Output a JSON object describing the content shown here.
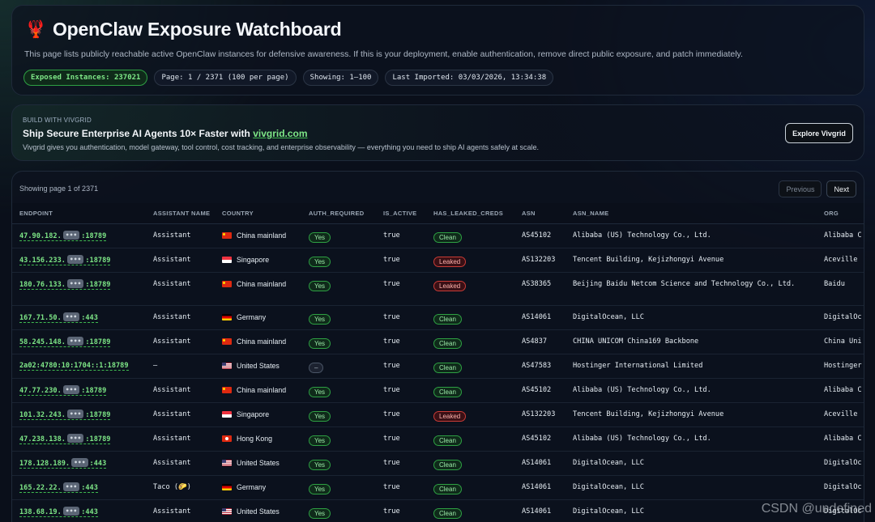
{
  "header": {
    "title": "OpenClaw Exposure Watchboard",
    "description": "This page lists publicly reachable active OpenClaw instances for defensive awareness. If this is your deployment, enable authentication, remove direct public exposure, and patch immediately.",
    "pills": {
      "exposed": "Exposed Instances: 237021",
      "page": "Page: 1 / 2371 (100 per page)",
      "showing": "Showing: 1–100",
      "imported": "Last Imported: 03/03/2026, 13:34:38"
    }
  },
  "promo": {
    "kicker": "BUILD WITH VIVGRID",
    "headline_prefix": "Ship Secure Enterprise AI Agents 10× Faster with ",
    "headline_link": "vivgrid.com",
    "subtext": "Vivgrid gives you authentication, model gateway, tool control, cost tracking, and enterprise observability — everything you need to ship AI agents safely at scale.",
    "button": "Explore Vivgrid"
  },
  "table": {
    "showing_text": "Showing page 1 of 2371",
    "prev_label": "Previous",
    "next_label": "Next",
    "columns": [
      "ENDPOINT",
      "ASSISTANT NAME",
      "COUNTRY",
      "AUTH_REQUIRED",
      "IS_ACTIVE",
      "HAS_LEAKED_CREDS",
      "ASN",
      "ASN_NAME",
      "ORG"
    ],
    "mask_text": "•••",
    "rows": [
      {
        "ep_prefix": "47.90.182.",
        "ep_suffix": ":18789",
        "masked": true,
        "assistant": "Assistant",
        "flag": "cn",
        "country": "China mainland",
        "auth": "Yes",
        "active": "true",
        "leaked": "Clean",
        "asn": "AS45102",
        "asn_name": "Alibaba (US) Technology Co., Ltd.",
        "org": "Alibaba C"
      },
      {
        "ep_prefix": "43.156.233.",
        "ep_suffix": ":18789",
        "masked": true,
        "assistant": "Assistant",
        "flag": "sg",
        "country": "Singapore",
        "auth": "Yes",
        "active": "true",
        "leaked": "Leaked",
        "asn": "AS132203",
        "asn_name": "Tencent Building, Kejizhongyi Avenue",
        "org": "Aceville"
      },
      {
        "ep_prefix": "180.76.133.",
        "ep_suffix": ":18789",
        "masked": true,
        "assistant": "Assistant",
        "flag": "cn",
        "country": "China mainland",
        "auth": "Yes",
        "active": "true",
        "leaked": "Leaked",
        "asn": "AS38365",
        "asn_name": "Beijing Baidu Netcom Science and Technology Co., Ltd.",
        "org": "Baidu",
        "tall": true
      },
      {
        "ep_prefix": "167.71.50.",
        "ep_suffix": ":443",
        "masked": true,
        "assistant": "Assistant",
        "flag": "de",
        "country": "Germany",
        "auth": "Yes",
        "active": "true",
        "leaked": "Clean",
        "asn": "AS14061",
        "asn_name": "DigitalOcean, LLC",
        "org": "DigitalOc"
      },
      {
        "ep_prefix": "58.245.148.",
        "ep_suffix": ":18789",
        "masked": true,
        "assistant": "Assistant",
        "flag": "cn",
        "country": "China mainland",
        "auth": "Yes",
        "active": "true",
        "leaked": "Clean",
        "asn": "AS4837",
        "asn_name": "CHINA UNICOM China169 Backbone",
        "org": "China Uni"
      },
      {
        "ep_prefix": "2a02:4780:10:1704::1:18789",
        "ep_suffix": "",
        "masked": false,
        "assistant": "–",
        "flag": "us",
        "country": "United States",
        "auth": "–",
        "active": "true",
        "leaked": "Clean",
        "asn": "AS47583",
        "asn_name": "Hostinger International Limited",
        "org": "Hostinger"
      },
      {
        "ep_prefix": "47.77.230.",
        "ep_suffix": ":18789",
        "masked": true,
        "assistant": "Assistant",
        "flag": "cn",
        "country": "China mainland",
        "auth": "Yes",
        "active": "true",
        "leaked": "Clean",
        "asn": "AS45102",
        "asn_name": "Alibaba (US) Technology Co., Ltd.",
        "org": "Alibaba C"
      },
      {
        "ep_prefix": "101.32.243.",
        "ep_suffix": ":18789",
        "masked": true,
        "assistant": "Assistant",
        "flag": "sg",
        "country": "Singapore",
        "auth": "Yes",
        "active": "true",
        "leaked": "Leaked",
        "asn": "AS132203",
        "asn_name": "Tencent Building, Kejizhongyi Avenue",
        "org": "Aceville"
      },
      {
        "ep_prefix": "47.238.138.",
        "ep_suffix": ":18789",
        "masked": true,
        "assistant": "Assistant",
        "flag": "hk",
        "country": "Hong Kong",
        "auth": "Yes",
        "active": "true",
        "leaked": "Clean",
        "asn": "AS45102",
        "asn_name": "Alibaba (US) Technology Co., Ltd.",
        "org": "Alibaba C"
      },
      {
        "ep_prefix": "178.128.189.",
        "ep_suffix": ":443",
        "masked": true,
        "assistant": "Assistant",
        "flag": "us",
        "country": "United States",
        "auth": "Yes",
        "active": "true",
        "leaked": "Clean",
        "asn": "AS14061",
        "asn_name": "DigitalOcean, LLC",
        "org": "DigitalOc"
      },
      {
        "ep_prefix": "165.22.22.",
        "ep_suffix": ":443",
        "masked": true,
        "assistant": "Taco (🌮)",
        "flag": "de",
        "country": "Germany",
        "auth": "Yes",
        "active": "true",
        "leaked": "Clean",
        "asn": "AS14061",
        "asn_name": "DigitalOcean, LLC",
        "org": "DigitalOc"
      },
      {
        "ep_prefix": "138.68.19.",
        "ep_suffix": ":443",
        "masked": true,
        "assistant": "Assistant",
        "flag": "us",
        "country": "United States",
        "auth": "Yes",
        "active": "true",
        "leaked": "Clean",
        "asn": "AS14061",
        "asn_name": "DigitalOcean, LLC",
        "org": "DigitalOc"
      }
    ]
  },
  "watermark": "CSDN @undefined"
}
